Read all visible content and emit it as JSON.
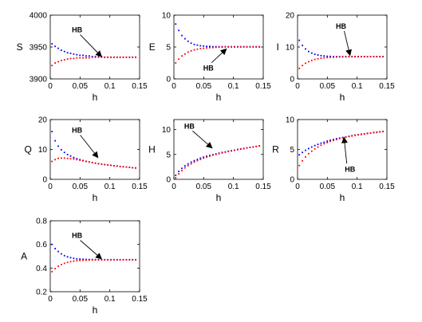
{
  "figure": {
    "background": "#ffffff",
    "series_colors": {
      "blue": "#0000ff",
      "red": "#ff0000"
    }
  },
  "chart_data": [
    {
      "type": "scatter",
      "ylabel": "S",
      "xlabel": "h",
      "xlim": [
        0,
        0.15
      ],
      "ylim": [
        3900,
        4000
      ],
      "xticks": [
        0,
        0.05,
        0.1,
        0.15
      ],
      "xtick_labels": [
        "0",
        "0.05",
        "0.1",
        "0.15"
      ],
      "yticks": [
        3900,
        3950,
        4000
      ],
      "ytick_labels": [
        "3900",
        "3950",
        "4000"
      ],
      "annotation": {
        "text": "HB",
        "text_at": [
          0.045,
          3973
        ],
        "arrow_to": [
          0.086,
          3935
        ]
      },
      "series": [
        {
          "color": "#0000ff",
          "x_start": 0.003,
          "x_step": 0.0052,
          "count": 28,
          "y": [
            3955,
            3951,
            3948,
            3945,
            3943,
            3941,
            3940,
            3939,
            3938,
            3937,
            3937,
            3936,
            3936,
            3935,
            3935,
            3935,
            3935,
            3934,
            3934,
            3934,
            3934,
            3934,
            3934,
            3934,
            3934,
            3934,
            3934,
            3934
          ]
        },
        {
          "color": "#ff0000",
          "x_start": 0.003,
          "x_step": 0.0052,
          "count": 28,
          "y": [
            3921,
            3925,
            3927,
            3929,
            3930,
            3931,
            3932,
            3932,
            3933,
            3933,
            3933,
            3933,
            3933,
            3934,
            3934,
            3934,
            3934,
            3934,
            3934,
            3934,
            3934,
            3934,
            3934,
            3934,
            3934,
            3934,
            3934,
            3934
          ]
        }
      ]
    },
    {
      "type": "scatter",
      "ylabel": "E",
      "xlabel": "h",
      "xlim": [
        0,
        0.15
      ],
      "ylim": [
        0,
        10
      ],
      "xticks": [
        0,
        0.05,
        0.1,
        0.15
      ],
      "xtick_labels": [
        "0",
        "0.05",
        "0.1",
        "0.15"
      ],
      "yticks": [
        0,
        5,
        10
      ],
      "ytick_labels": [
        "0",
        "5",
        "10"
      ],
      "annotation": {
        "text": "HB",
        "text_at": [
          0.058,
          1.3
        ],
        "arrow_to": [
          0.088,
          4.7
        ]
      },
      "series": [
        {
          "color": "#0000ff",
          "x_start": 0.003,
          "x_step": 0.0052,
          "count": 28,
          "y": [
            8.6,
            7.6,
            6.8,
            6.3,
            5.9,
            5.6,
            5.4,
            5.3,
            5.2,
            5.15,
            5.1,
            5.1,
            5.05,
            5.05,
            5.05,
            5.05,
            5.05,
            5.05,
            5.05,
            5.05,
            5.05,
            5.05,
            5.05,
            5.05,
            5.05,
            5.05,
            5.05,
            5.05
          ]
        },
        {
          "color": "#ff0000",
          "x_start": 0.003,
          "x_step": 0.0052,
          "count": 28,
          "y": [
            2.5,
            3.1,
            3.6,
            3.9,
            4.2,
            4.4,
            4.55,
            4.65,
            4.75,
            4.8,
            4.85,
            4.9,
            4.92,
            4.95,
            4.97,
            4.98,
            5.0,
            5.0,
            5.0,
            5.0,
            5.0,
            5.0,
            5.0,
            5.0,
            5.0,
            5.0,
            5.0,
            5.0
          ]
        }
      ]
    },
    {
      "type": "scatter",
      "ylabel": "I",
      "xlabel": "h",
      "xlim": [
        0,
        0.15
      ],
      "ylim": [
        0,
        20
      ],
      "xticks": [
        0,
        0.05,
        0.1,
        0.15
      ],
      "xtick_labels": [
        "0",
        "0.05",
        "0.1",
        "0.15"
      ],
      "yticks": [
        0,
        10,
        20
      ],
      "ytick_labels": [
        "0",
        "10",
        "20"
      ],
      "annotation": {
        "text": "HB",
        "text_at": [
          0.073,
          15.8
        ],
        "arrow_to": [
          0.088,
          7.4
        ]
      },
      "series": [
        {
          "color": "#0000ff",
          "x_start": 0.003,
          "x_step": 0.0052,
          "count": 28,
          "y": [
            12.1,
            10.5,
            9.4,
            8.6,
            8.1,
            7.7,
            7.5,
            7.3,
            7.2,
            7.1,
            7.05,
            7.0,
            7.0,
            7.0,
            7.0,
            7.0,
            7.0,
            7.0,
            7.0,
            7.0,
            7.0,
            7.0,
            7.0,
            7.0,
            7.0,
            7.0,
            7.0,
            7.0
          ]
        },
        {
          "color": "#ff0000",
          "x_start": 0.003,
          "x_step": 0.0052,
          "count": 28,
          "y": [
            3.3,
            4.2,
            4.9,
            5.4,
            5.8,
            6.1,
            6.3,
            6.5,
            6.6,
            6.7,
            6.75,
            6.8,
            6.85,
            6.9,
            6.9,
            6.9,
            6.95,
            6.95,
            6.95,
            6.95,
            6.95,
            6.95,
            6.95,
            6.95,
            6.95,
            6.95,
            6.95,
            6.95
          ]
        }
      ]
    },
    {
      "type": "scatter",
      "ylabel": "Q",
      "xlabel": "h",
      "xlim": [
        0,
        0.15
      ],
      "ylim": [
        0,
        20
      ],
      "xticks": [
        0,
        0.05,
        0.1,
        0.15
      ],
      "xtick_labels": [
        "0",
        "0.05",
        "0.1",
        "0.15"
      ],
      "yticks": [
        0,
        10,
        20
      ],
      "ytick_labels": [
        "0",
        "10",
        "20"
      ],
      "annotation": {
        "text": "HB",
        "text_at": [
          0.045,
          15.6
        ],
        "arrow_to": [
          0.08,
          7.3
        ]
      },
      "series": [
        {
          "color": "#0000ff",
          "x_start": 0.003,
          "x_step": 0.0052,
          "count": 28,
          "y": [
            16.0,
            12.9,
            11.1,
            9.9,
            9.0,
            8.3,
            7.8,
            7.3,
            6.9,
            6.6,
            6.3,
            6.0,
            5.8,
            5.6,
            5.4,
            5.25,
            5.1,
            4.95,
            4.8,
            4.7,
            4.55,
            4.45,
            4.3,
            4.2,
            4.1,
            4.0,
            3.9,
            3.8
          ]
        },
        {
          "color": "#ff0000",
          "x_start": 0.003,
          "x_step": 0.0052,
          "count": 28,
          "y": [
            6.0,
            6.6,
            7.0,
            7.1,
            7.1,
            7.0,
            6.9,
            6.8,
            6.6,
            6.4,
            6.2,
            6.0,
            5.8,
            5.6,
            5.4,
            5.25,
            5.1,
            4.95,
            4.8,
            4.7,
            4.55,
            4.45,
            4.3,
            4.2,
            4.1,
            4.0,
            3.9,
            3.8
          ]
        }
      ]
    },
    {
      "type": "scatter",
      "ylabel": "H",
      "xlabel": "h",
      "xlim": [
        0,
        0.15
      ],
      "ylim": [
        0,
        12
      ],
      "xticks": [
        0,
        0.05,
        0.1,
        0.15
      ],
      "xtick_labels": [
        "0",
        "0.05",
        "0.1",
        "0.15"
      ],
      "yticks": [
        0,
        5,
        10
      ],
      "ytick_labels": [
        "0",
        "5",
        "10"
      ],
      "annotation": {
        "text": "HB",
        "text_at": [
          0.026,
          10.2
        ],
        "arrow_to": [
          0.064,
          6.3
        ]
      },
      "series": [
        {
          "color": "#0000ff",
          "x_start": 0.003,
          "x_step": 0.0052,
          "count": 28,
          "y": [
            0.8,
            1.6,
            2.2,
            2.7,
            3.1,
            3.45,
            3.75,
            4.0,
            4.25,
            4.45,
            4.65,
            4.8,
            4.95,
            5.1,
            5.25,
            5.4,
            5.5,
            5.65,
            5.75,
            5.85,
            6.0,
            6.1,
            6.2,
            6.3,
            6.4,
            6.5,
            6.6,
            6.7
          ]
        },
        {
          "color": "#ff0000",
          "x_start": 0.003,
          "x_step": 0.0052,
          "count": 28,
          "y": [
            0.3,
            1.1,
            1.75,
            2.3,
            2.75,
            3.1,
            3.45,
            3.75,
            4.0,
            4.25,
            4.45,
            4.65,
            4.85,
            5.0,
            5.15,
            5.3,
            5.45,
            5.6,
            5.7,
            5.85,
            5.95,
            6.05,
            6.15,
            6.3,
            6.4,
            6.5,
            6.6,
            6.7
          ]
        }
      ]
    },
    {
      "type": "scatter",
      "ylabel": "R",
      "xlabel": "h",
      "xlim": [
        0,
        0.15
      ],
      "ylim": [
        0,
        10
      ],
      "xticks": [
        0,
        0.05,
        0.1,
        0.15
      ],
      "xtick_labels": [
        "0",
        "0.05",
        "0.1",
        "0.15"
      ],
      "yticks": [
        0,
        5,
        10
      ],
      "ytick_labels": [
        "0",
        "5",
        "10"
      ],
      "annotation": {
        "text": "HB",
        "text_at": [
          0.088,
          1.3
        ],
        "arrow_to": [
          0.078,
          7.0
        ]
      },
      "series": [
        {
          "color": "#0000ff",
          "x_start": 0.003,
          "x_step": 0.0052,
          "count": 28,
          "y": [
            4.1,
            4.5,
            4.85,
            5.15,
            5.4,
            5.65,
            5.85,
            6.05,
            6.2,
            6.4,
            6.55,
            6.65,
            6.8,
            6.9,
            7.0,
            7.1,
            7.2,
            7.3,
            7.4,
            7.45,
            7.55,
            7.6,
            7.7,
            7.75,
            7.85,
            7.9,
            7.95,
            8.0
          ]
        },
        {
          "color": "#ff0000",
          "x_start": 0.003,
          "x_step": 0.0052,
          "count": 28,
          "y": [
            2.3,
            3.1,
            3.75,
            4.3,
            4.7,
            5.1,
            5.4,
            5.7,
            5.95,
            6.15,
            6.35,
            6.5,
            6.65,
            6.8,
            6.95,
            7.05,
            7.15,
            7.25,
            7.35,
            7.45,
            7.5,
            7.6,
            7.65,
            7.75,
            7.8,
            7.85,
            7.95,
            8.0
          ]
        }
      ]
    },
    {
      "type": "scatter",
      "ylabel": "A",
      "xlabel": "h",
      "xlim": [
        0,
        0.15
      ],
      "ylim": [
        0.2,
        0.8
      ],
      "xticks": [
        0,
        0.05,
        0.1,
        0.15
      ],
      "xtick_labels": [
        "0",
        "0.05",
        "0.1",
        "0.15"
      ],
      "yticks": [
        0.2,
        0.4,
        0.6,
        0.8
      ],
      "ytick_labels": [
        "0.2",
        "0.4",
        "0.6",
        "0.8"
      ],
      "annotation": {
        "text": "HB",
        "text_at": [
          0.045,
          0.655
        ],
        "arrow_to": [
          0.086,
          0.478
        ]
      },
      "series": [
        {
          "color": "#0000ff",
          "x_start": 0.003,
          "x_step": 0.0052,
          "count": 28,
          "y": [
            0.6,
            0.565,
            0.54,
            0.52,
            0.505,
            0.495,
            0.488,
            0.482,
            0.478,
            0.476,
            0.474,
            0.473,
            0.472,
            0.472,
            0.471,
            0.471,
            0.471,
            0.471,
            0.471,
            0.471,
            0.471,
            0.471,
            0.471,
            0.471,
            0.471,
            0.471,
            0.471,
            0.471
          ]
        },
        {
          "color": "#ff0000",
          "x_start": 0.003,
          "x_step": 0.0052,
          "count": 28,
          "y": [
            0.37,
            0.395,
            0.415,
            0.43,
            0.44,
            0.448,
            0.454,
            0.459,
            0.462,
            0.464,
            0.466,
            0.467,
            0.468,
            0.469,
            0.469,
            0.47,
            0.47,
            0.47,
            0.47,
            0.47,
            0.47,
            0.47,
            0.47,
            0.47,
            0.47,
            0.47,
            0.47,
            0.47
          ]
        }
      ]
    }
  ]
}
